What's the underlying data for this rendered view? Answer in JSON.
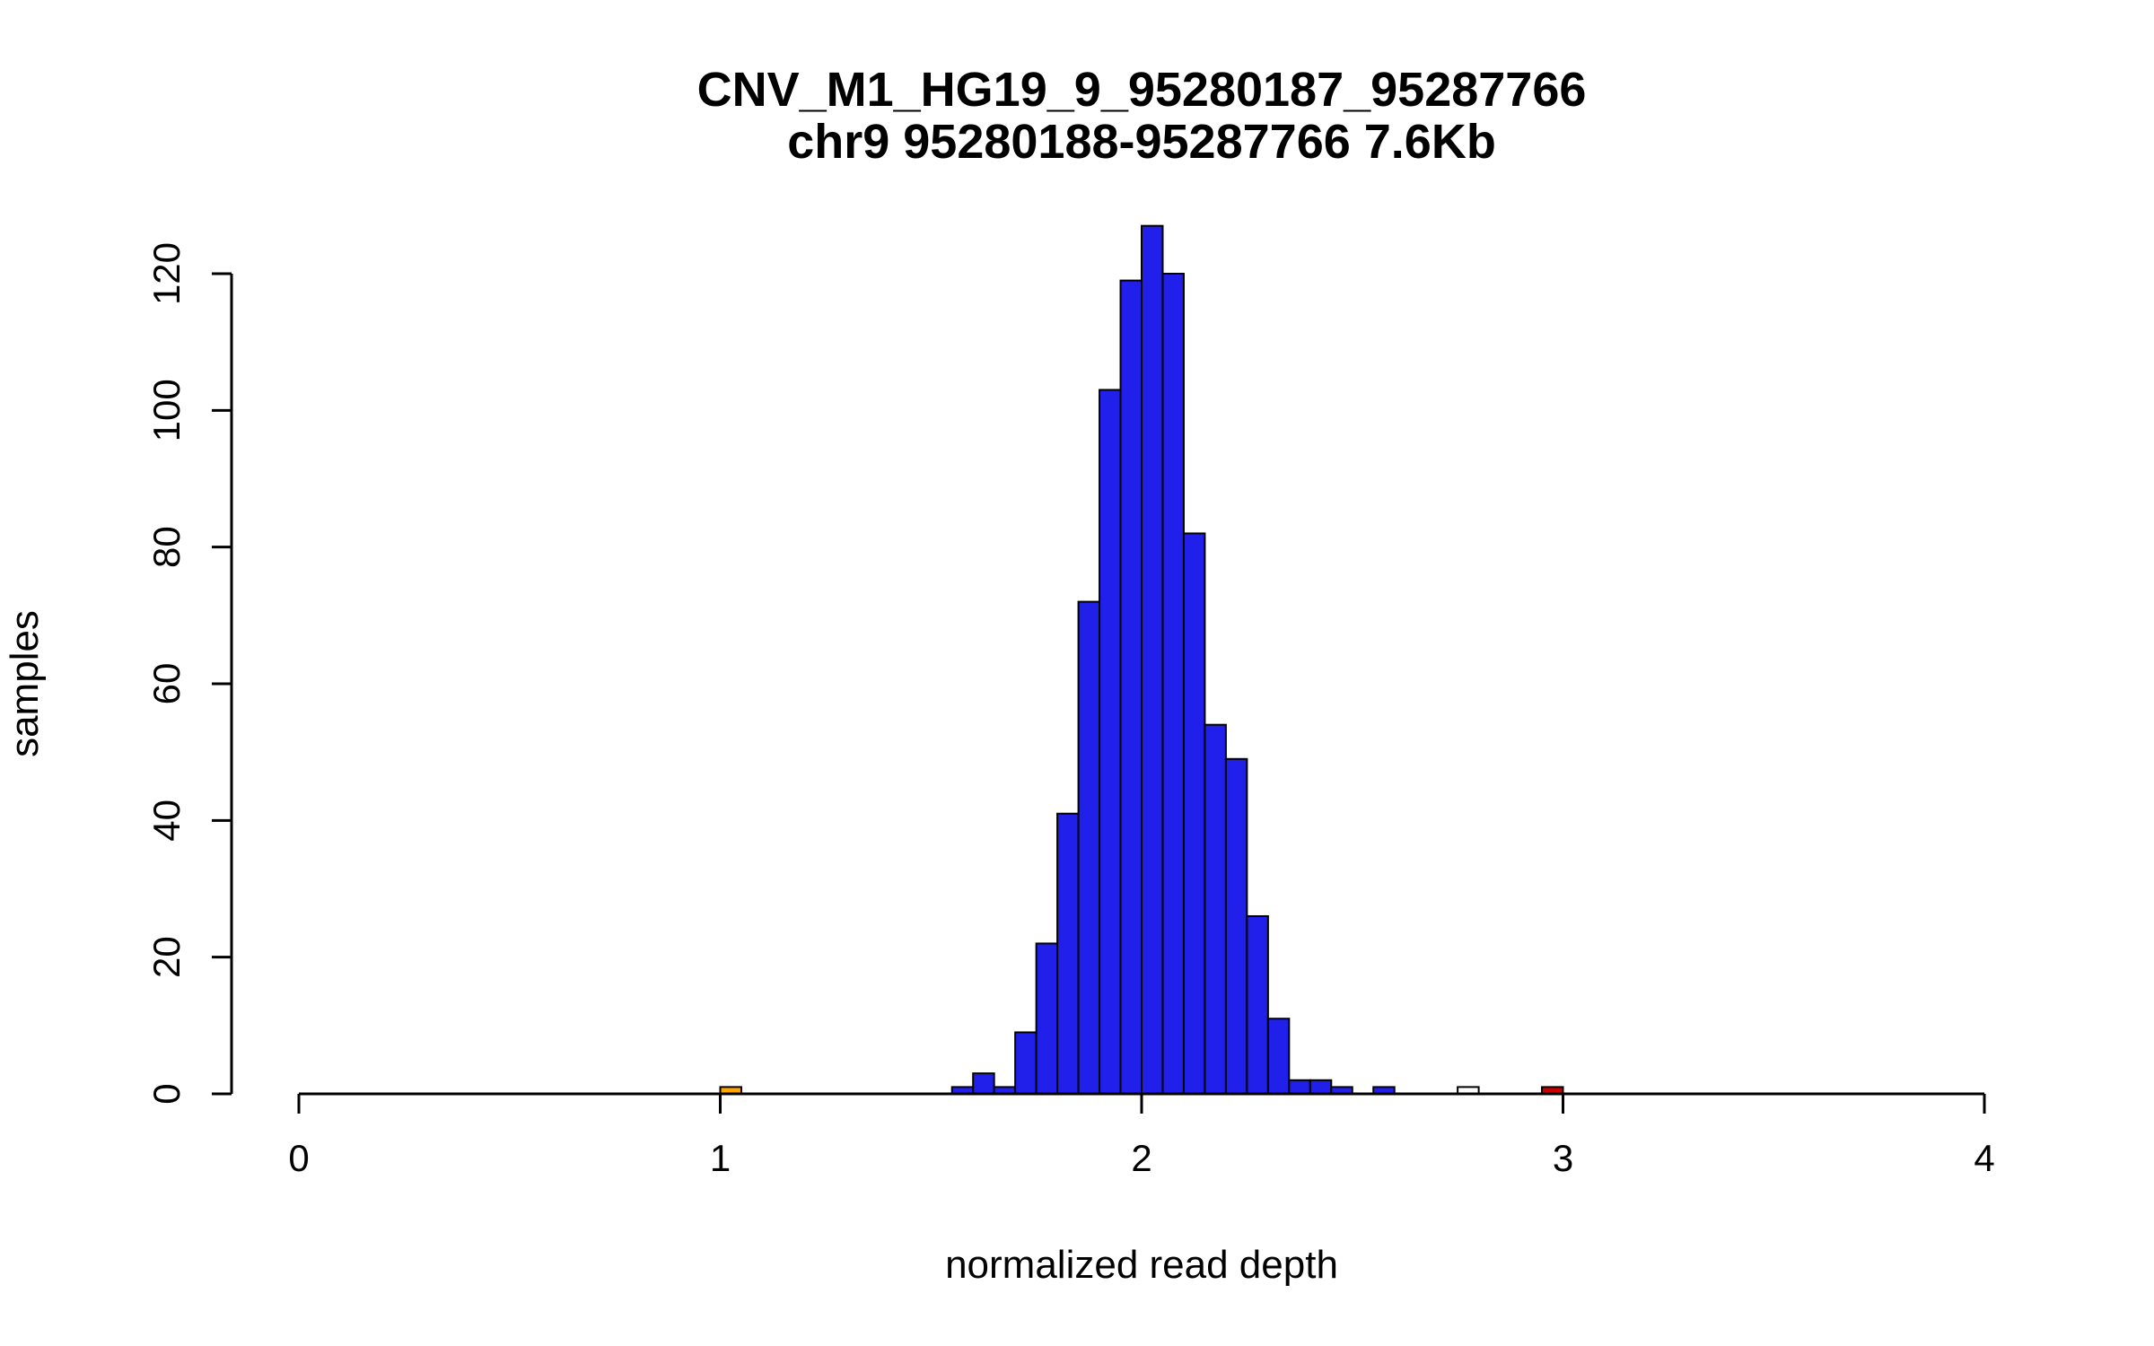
{
  "chart_data": {
    "type": "bar",
    "subtype": "histogram",
    "title": "CNV_M1_HG19_9_95280187_95287766",
    "subtitle": "chr9 95280188-95287766 7.6Kb",
    "xlabel": "normalized read depth",
    "ylabel": "samples",
    "xlim": [
      0,
      4
    ],
    "ylim": [
      0,
      120
    ],
    "x_ticks": [
      0,
      1,
      2,
      3,
      4
    ],
    "y_ticks": [
      0,
      20,
      40,
      60,
      80,
      100,
      120
    ],
    "bin_width": 0.05,
    "grid": false,
    "legend": false,
    "colors": {
      "bar_main": "#2020EA",
      "bar_outlier_low": "#FFA500",
      "bar_outlier_mid": "#FFFFFF",
      "bar_outlier_high": "#CC0000",
      "bar_border": "#000000",
      "axis": "#000000"
    },
    "bars": [
      {
        "x": 1.0,
        "count": 1,
        "color": "#FFA500"
      },
      {
        "x": 1.55,
        "count": 1,
        "color": "#2020EA"
      },
      {
        "x": 1.6,
        "count": 3,
        "color": "#2020EA"
      },
      {
        "x": 1.65,
        "count": 1,
        "color": "#2020EA"
      },
      {
        "x": 1.7,
        "count": 9,
        "color": "#2020EA"
      },
      {
        "x": 1.75,
        "count": 22,
        "color": "#2020EA"
      },
      {
        "x": 1.8,
        "count": 41,
        "color": "#2020EA"
      },
      {
        "x": 1.85,
        "count": 72,
        "color": "#2020EA"
      },
      {
        "x": 1.9,
        "count": 103,
        "color": "#2020EA"
      },
      {
        "x": 1.95,
        "count": 119,
        "color": "#2020EA"
      },
      {
        "x": 2.0,
        "count": 127,
        "color": "#2020EA"
      },
      {
        "x": 2.05,
        "count": 120,
        "color": "#2020EA"
      },
      {
        "x": 2.1,
        "count": 82,
        "color": "#2020EA"
      },
      {
        "x": 2.15,
        "count": 54,
        "color": "#2020EA"
      },
      {
        "x": 2.2,
        "count": 49,
        "color": "#2020EA"
      },
      {
        "x": 2.25,
        "count": 26,
        "color": "#2020EA"
      },
      {
        "x": 2.3,
        "count": 11,
        "color": "#2020EA"
      },
      {
        "x": 2.35,
        "count": 2,
        "color": "#2020EA"
      },
      {
        "x": 2.4,
        "count": 2,
        "color": "#2020EA"
      },
      {
        "x": 2.45,
        "count": 1,
        "color": "#2020EA"
      },
      {
        "x": 2.55,
        "count": 1,
        "color": "#2020EA"
      },
      {
        "x": 2.75,
        "count": 1,
        "color": "#FFFFFF"
      },
      {
        "x": 2.95,
        "count": 1,
        "color": "#CC0000"
      }
    ]
  }
}
